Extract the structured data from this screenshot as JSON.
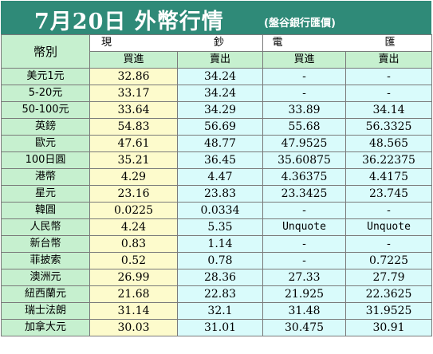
{
  "title": "7月20日 外幣行情",
  "source": "(盤谷銀行匯價)",
  "header": {
    "currency": "幣別",
    "cash": "現　　鈔",
    "telegraphic": "電　　匯",
    "buy": "買進",
    "sell": "賣出"
  },
  "rows": [
    {
      "currency": "美元1元",
      "cash_buy": "32.86",
      "cash_sell": "34.24",
      "tt_buy": "-",
      "tt_sell": "-"
    },
    {
      "currency": "5-20元",
      "cash_buy": "33.17",
      "cash_sell": "34.24",
      "tt_buy": "-",
      "tt_sell": "-"
    },
    {
      "currency": "50-100元",
      "cash_buy": "33.64",
      "cash_sell": "34.29",
      "tt_buy": "33.89",
      "tt_sell": "34.14"
    },
    {
      "currency": "英鎊",
      "cash_buy": "54.83",
      "cash_sell": "56.69",
      "tt_buy": "55.68",
      "tt_sell": "56.3325"
    },
    {
      "currency": "歐元",
      "cash_buy": "47.61",
      "cash_sell": "48.77",
      "tt_buy": "47.9525",
      "tt_sell": "48.565"
    },
    {
      "currency": "100日圓",
      "cash_buy": "35.21",
      "cash_sell": "36.45",
      "tt_buy": "35.60875",
      "tt_sell": "36.22375"
    },
    {
      "currency": "港幣",
      "cash_buy": "4.29",
      "cash_sell": "4.47",
      "tt_buy": "4.36375",
      "tt_sell": "4.4175"
    },
    {
      "currency": "星元",
      "cash_buy": "23.16",
      "cash_sell": "23.83",
      "tt_buy": "23.3425",
      "tt_sell": "23.745"
    },
    {
      "currency": "韓圓",
      "cash_buy": "0.0225",
      "cash_sell": "0.0334",
      "tt_buy": "-",
      "tt_sell": "-"
    },
    {
      "currency": "人民幣",
      "cash_buy": "4.24",
      "cash_sell": "5.35",
      "tt_buy": "Unquote",
      "tt_sell": "Unquote"
    },
    {
      "currency": "新台幣",
      "cash_buy": "0.83",
      "cash_sell": "1.14",
      "tt_buy": "-",
      "tt_sell": "-"
    },
    {
      "currency": "菲披索",
      "cash_buy": "0.52",
      "cash_sell": "0.78",
      "tt_buy": "-",
      "tt_sell": "0.7225"
    },
    {
      "currency": "澳洲元",
      "cash_buy": "26.99",
      "cash_sell": "28.36",
      "tt_buy": "27.33",
      "tt_sell": "27.79"
    },
    {
      "currency": "紐西蘭元",
      "cash_buy": "21.68",
      "cash_sell": "22.83",
      "tt_buy": "21.925",
      "tt_sell": "22.3625"
    },
    {
      "currency": "瑞士法朗",
      "cash_buy": "31.14",
      "cash_sell": "32.1",
      "tt_buy": "31.48",
      "tt_sell": "31.9525"
    },
    {
      "currency": "加拿大元",
      "cash_buy": "30.03",
      "cash_sell": "31.01",
      "tt_buy": "30.475",
      "tt_sell": "30.91"
    }
  ],
  "colors": {
    "title_bg": "#2f8a78",
    "currency_col": "#c6f0cf",
    "cash_buy_col": "#fdfbcc",
    "other_col": "#d9fbfb"
  }
}
